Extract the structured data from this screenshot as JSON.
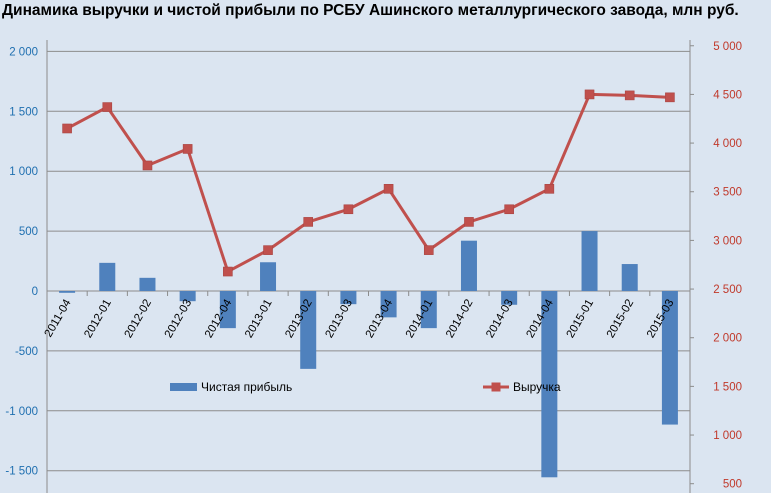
{
  "chart_data": {
    "type": "bar+line",
    "title": "Динамика выручки и чистой прибыли по РСБУ Ашинского металлургического завода, млн руб.",
    "categories": [
      "2011-04",
      "2012-01",
      "2012-02",
      "2012-03",
      "2012-04",
      "2013-01",
      "2013-02",
      "2013-03",
      "2013-04",
      "2014-01",
      "2014-02",
      "2014-03",
      "2014-04",
      "2015-01",
      "2015-02",
      "2015-03"
    ],
    "series": [
      {
        "name": "Чистая прибыль",
        "type": "bar",
        "axis": "left",
        "color": "#4f81bd",
        "values": [
          -15,
          235,
          110,
          -85,
          -310,
          240,
          -650,
          -110,
          -220,
          -310,
          420,
          -115,
          -1555,
          500,
          225,
          -1115
        ]
      },
      {
        "name": "Выручка",
        "type": "line",
        "axis": "right",
        "color": "#c0504d",
        "values": [
          4150,
          4370,
          3770,
          3940,
          2680,
          2900,
          3190,
          3320,
          3530,
          2900,
          3190,
          3320,
          3530,
          4500,
          4490,
          4470
        ]
      }
    ],
    "y_left": {
      "min": -1700,
      "max": 2000,
      "ticks": [
        -1500,
        -1000,
        -500,
        0,
        500,
        1000,
        1500,
        2000
      ],
      "tick_labels": [
        "-1 500",
        "-1 000",
        "-500",
        "0",
        "500",
        "1 000",
        "1 500",
        "2 000"
      ],
      "color": "#1f6fb0"
    },
    "y_right": {
      "min": 500,
      "max": 5000,
      "ticks": [
        500,
        1000,
        1500,
        2000,
        2500,
        3000,
        3500,
        4000,
        4500,
        5000
      ],
      "tick_labels": [
        "500",
        "1 000",
        "1 500",
        "2 000",
        "2 500",
        "3 000",
        "3 500",
        "4 000",
        "4 500",
        "5 000"
      ],
      "color": "#c0392b"
    },
    "grid": true,
    "legend_placement": "inside-middle"
  }
}
